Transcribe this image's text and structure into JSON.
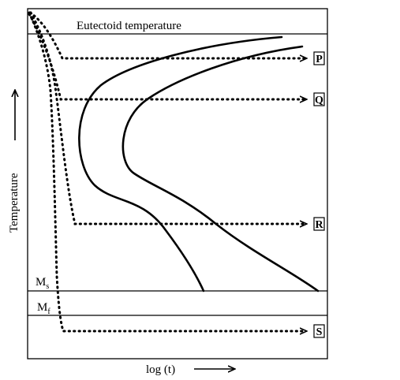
{
  "lines": {
    "eutectoid": "Eutectoid temperature",
    "ms": {
      "main": "M",
      "sub": "s"
    },
    "mf": {
      "main": "M",
      "sub": "f"
    }
  },
  "axes": {
    "y_label": "Temperature",
    "x_label": "log (t)"
  },
  "paths": {
    "p": "P",
    "q": "Q",
    "r": "R",
    "s": "S"
  }
}
